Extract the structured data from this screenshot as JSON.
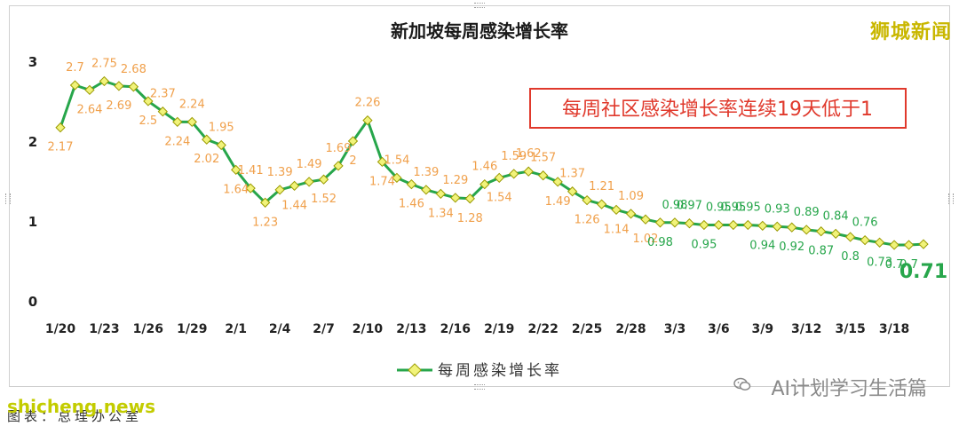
{
  "brand": "狮城新闻",
  "footer": {
    "source": "shicheng.news",
    "caption": "图表：总理办公室"
  },
  "watermark": "AI计划学习生活篇",
  "colors": {
    "line": "#27a64b",
    "marker": "#f1f37a",
    "label_orange": "#f0a04b",
    "label_green": "#27a64b",
    "callout_border": "#e0392c",
    "callout_text": "#e0392c",
    "title": "#1a1a1a"
  },
  "chart_data": {
    "type": "line",
    "title": "新加坡每周感染增长率",
    "ylim": [
      0,
      3
    ],
    "yticks": [
      "0",
      "1",
      "2",
      "3"
    ],
    "x_tick_labels": [
      "1/20",
      "1/23",
      "1/26",
      "1/29",
      "2/1",
      "2/4",
      "2/7",
      "2/10",
      "2/13",
      "2/16",
      "2/19",
      "2/22",
      "2/25",
      "2/28",
      "3/3",
      "3/6",
      "3/9",
      "3/12",
      "3/15",
      "3/18"
    ],
    "x": [
      "1/20",
      "1/21",
      "1/22",
      "1/23",
      "1/24",
      "1/25",
      "1/26",
      "1/27",
      "1/28",
      "1/29",
      "1/30",
      "1/31",
      "2/1",
      "2/2",
      "2/3",
      "2/4",
      "2/5",
      "2/6",
      "2/7",
      "2/8",
      "2/9",
      "2/10",
      "2/11",
      "2/12",
      "2/13",
      "2/14",
      "2/15",
      "2/16",
      "2/17",
      "2/18",
      "2/19",
      "2/20",
      "2/21",
      "2/22",
      "2/23",
      "2/24",
      "2/25",
      "2/26",
      "2/27",
      "2/28",
      "3/1",
      "3/2",
      "3/3",
      "3/4",
      "3/5",
      "3/6",
      "3/7",
      "3/8",
      "3/9",
      "3/10",
      "3/11",
      "3/12",
      "3/13",
      "3/14",
      "3/15",
      "3/16",
      "3/17",
      "3/18",
      "3/19",
      "3/20"
    ],
    "series": [
      {
        "name": "每周感染增长率",
        "values": [
          2.17,
          2.7,
          2.64,
          2.75,
          2.69,
          2.68,
          2.5,
          2.37,
          2.24,
          2.24,
          2.02,
          1.95,
          1.64,
          1.41,
          1.23,
          1.39,
          1.44,
          1.49,
          1.52,
          1.69,
          2,
          2.26,
          1.74,
          1.54,
          1.46,
          1.39,
          1.34,
          1.29,
          1.28,
          1.46,
          1.54,
          1.59,
          1.62,
          1.57,
          1.49,
          1.37,
          1.26,
          1.21,
          1.14,
          1.09,
          1.02,
          0.98,
          0.98,
          0.97,
          0.95,
          0.95,
          0.95,
          0.95,
          0.94,
          0.93,
          0.92,
          0.89,
          0.87,
          0.84,
          0.8,
          0.76,
          0.73,
          0.7,
          0.7,
          0.71
        ]
      }
    ],
    "legend": "bottom",
    "grid": false,
    "annotation": "每周社区感染增长率连续19天低于1"
  }
}
